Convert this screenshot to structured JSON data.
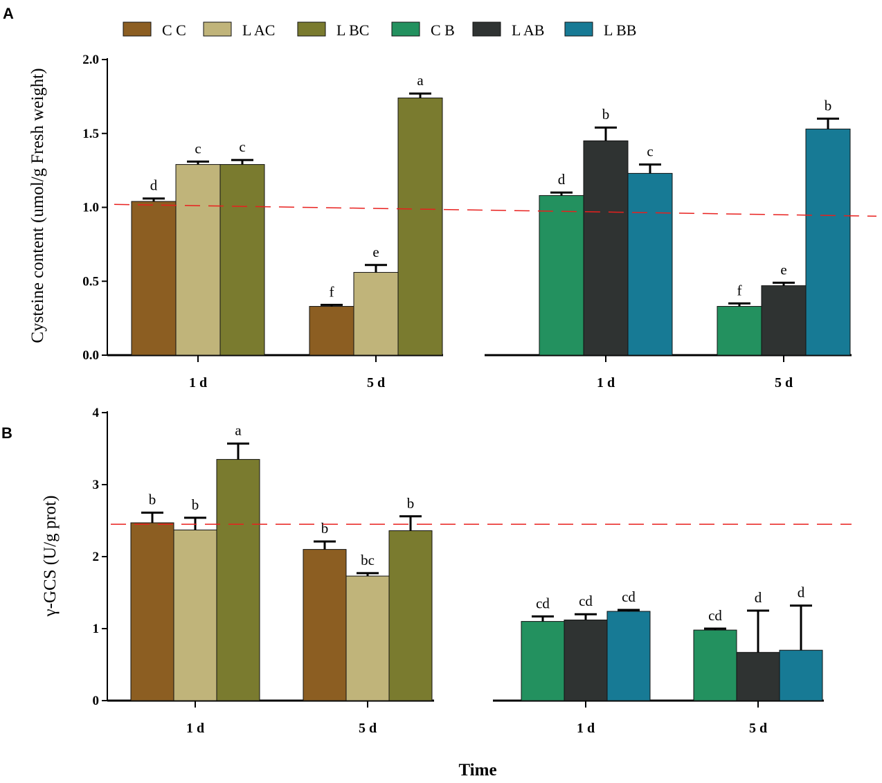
{
  "colors": {
    "CC": "#8c5e22",
    "LAC": "#c0b47a",
    "LBC": "#7a7b2f",
    "CB": "#23915f",
    "LAB": "#2f3332",
    "LBB": "#177a95",
    "reference_line": "#e8201e",
    "axis": "#000000"
  },
  "chart_data": [
    {
      "type": "bar",
      "panel_label": "A",
      "title": "",
      "ylabel": "Cysteine content (umol/g Fresh weight)",
      "xlabel": "",
      "ylim": [
        0,
        2.0
      ],
      "yticks": [
        0,
        0.5,
        1.0,
        1.5,
        2.0
      ],
      "ytick_labels": [
        "0.0",
        "0.5",
        "1.0",
        "1.5",
        "2.0"
      ],
      "legend": [
        "C C",
        "L AC",
        "L BC",
        "C B",
        "L AB",
        "L BB"
      ],
      "legend_position": "top",
      "reference_line": {
        "style": "dashed",
        "from_value": 1.02,
        "to_value": 0.94
      },
      "groups": [
        {
          "label": "1 d",
          "series": [
            "CC",
            "LAC",
            "LBC"
          ],
          "values": [
            1.04,
            1.29,
            1.29
          ],
          "errors": [
            0.02,
            0.02,
            0.03
          ],
          "letters": [
            "d",
            "c",
            "c"
          ]
        },
        {
          "label": "5 d",
          "series": [
            "CC",
            "LAC",
            "LBC"
          ],
          "values": [
            0.33,
            0.56,
            1.74
          ],
          "errors": [
            0.01,
            0.05,
            0.03
          ],
          "letters": [
            "f",
            "e",
            "a"
          ]
        },
        {
          "label": "1 d",
          "series": [
            "CB",
            "LAB",
            "LBB"
          ],
          "values": [
            1.08,
            1.45,
            1.23
          ],
          "errors": [
            0.02,
            0.09,
            0.06
          ],
          "letters": [
            "d",
            "b",
            "c"
          ]
        },
        {
          "label": "5 d",
          "series": [
            "CB",
            "LAB",
            "LBB"
          ],
          "values": [
            0.33,
            0.47,
            1.53
          ],
          "errors": [
            0.02,
            0.02,
            0.07
          ],
          "letters": [
            "f",
            "e",
            "b"
          ]
        }
      ]
    },
    {
      "type": "bar",
      "panel_label": "B",
      "title": "",
      "ylabel": "γ-GCS (U/g prot)",
      "xlabel": "Time",
      "ylim": [
        0,
        4
      ],
      "yticks": [
        0,
        1,
        2,
        3,
        4
      ],
      "ytick_labels": [
        "0",
        "1",
        "2",
        "3",
        "4"
      ],
      "reference_line": {
        "style": "dashed",
        "from_value": 2.45,
        "to_value": 2.45
      },
      "groups": [
        {
          "label": "1 d",
          "series": [
            "CC",
            "LAC",
            "LBC"
          ],
          "values": [
            2.47,
            2.37,
            3.35
          ],
          "errors": [
            0.14,
            0.17,
            0.22
          ],
          "letters": [
            "b",
            "b",
            "a"
          ]
        },
        {
          "label": "5 d",
          "series": [
            "CC",
            "LAC",
            "LBC"
          ],
          "values": [
            2.1,
            1.73,
            2.36
          ],
          "errors": [
            0.11,
            0.04,
            0.2
          ],
          "letters": [
            "b",
            "bc",
            "b"
          ]
        },
        {
          "label": "1 d",
          "series": [
            "CB",
            "LAB",
            "LBB"
          ],
          "values": [
            1.1,
            1.12,
            1.24
          ],
          "errors": [
            0.07,
            0.08,
            0.02
          ],
          "letters": [
            "cd",
            "cd",
            "cd"
          ]
        },
        {
          "label": "5 d",
          "series": [
            "CB",
            "LAB",
            "LBB"
          ],
          "values": [
            0.98,
            0.67,
            0.7
          ],
          "errors": [
            0.02,
            0.58,
            0.62
          ],
          "letters": [
            "cd",
            "d",
            "d"
          ]
        }
      ]
    }
  ]
}
